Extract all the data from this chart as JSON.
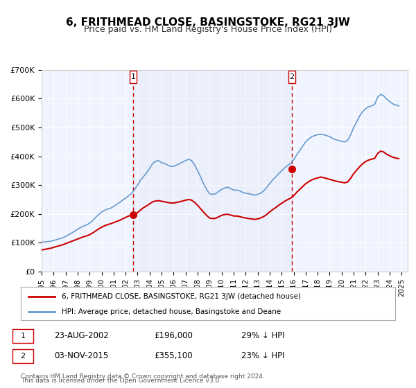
{
  "title": "6, FRITHMEAD CLOSE, BASINGSTOKE, RG21 3JW",
  "subtitle": "Price paid vs. HM Land Registry's House Price Index (HPI)",
  "background_color": "#ffffff",
  "plot_bg_color": "#f0f4ff",
  "grid_color": "#ffffff",
  "ylim": [
    0,
    700000
  ],
  "yticks": [
    0,
    100000,
    200000,
    300000,
    400000,
    500000,
    600000,
    700000
  ],
  "ytick_labels": [
    "£0",
    "£100K",
    "£200K",
    "£300K",
    "£400K",
    "£500K",
    "£600K",
    "£700K"
  ],
  "xmin": 1995.0,
  "xmax": 2025.5,
  "xticks": [
    1995,
    1996,
    1997,
    1998,
    1999,
    2000,
    2001,
    2002,
    2003,
    2004,
    2005,
    2006,
    2007,
    2008,
    2009,
    2010,
    2011,
    2012,
    2013,
    2014,
    2015,
    2016,
    2017,
    2018,
    2019,
    2020,
    2021,
    2022,
    2023,
    2024,
    2025
  ],
  "marker1_x": 2002.644,
  "marker1_y": 196000,
  "marker1_label": "1",
  "marker1_date": "23-AUG-2002",
  "marker1_price": "£196,000",
  "marker1_hpi": "29% ↓ HPI",
  "marker2_x": 2015.838,
  "marker2_y": 355100,
  "marker2_label": "2",
  "marker2_date": "03-NOV-2015",
  "marker2_price": "£355,100",
  "marker2_hpi": "23% ↓ HPI",
  "line1_color": "#cc0000",
  "line2_color": "#6699cc",
  "marker_color": "#cc0000",
  "legend1_label": "6, FRITHMEAD CLOSE, BASINGSTOKE, RG21 3JW (detached house)",
  "legend2_label": "HPI: Average price, detached house, Basingstoke and Deane",
  "footer1": "Contains HM Land Registry data © Crown copyright and database right 2024.",
  "footer2": "This data is licensed under the Open Government Licence v3.0.",
  "hpi_data_x": [
    1995.0,
    1995.25,
    1995.5,
    1995.75,
    1996.0,
    1996.25,
    1996.5,
    1996.75,
    1997.0,
    1997.25,
    1997.5,
    1997.75,
    1998.0,
    1998.25,
    1998.5,
    1998.75,
    1999.0,
    1999.25,
    1999.5,
    1999.75,
    2000.0,
    2000.25,
    2000.5,
    2000.75,
    2001.0,
    2001.25,
    2001.5,
    2001.75,
    2002.0,
    2002.25,
    2002.5,
    2002.75,
    2003.0,
    2003.25,
    2003.5,
    2003.75,
    2004.0,
    2004.25,
    2004.5,
    2004.75,
    2005.0,
    2005.25,
    2005.5,
    2005.75,
    2006.0,
    2006.25,
    2006.5,
    2006.75,
    2007.0,
    2007.25,
    2007.5,
    2007.75,
    2008.0,
    2008.25,
    2008.5,
    2008.75,
    2009.0,
    2009.25,
    2009.5,
    2009.75,
    2010.0,
    2010.25,
    2010.5,
    2010.75,
    2011.0,
    2011.25,
    2011.5,
    2011.75,
    2012.0,
    2012.25,
    2012.5,
    2012.75,
    2013.0,
    2013.25,
    2013.5,
    2013.75,
    2014.0,
    2014.25,
    2014.5,
    2014.75,
    2015.0,
    2015.25,
    2015.5,
    2015.75,
    2016.0,
    2016.25,
    2016.5,
    2016.75,
    2017.0,
    2017.25,
    2017.5,
    2017.75,
    2018.0,
    2018.25,
    2018.5,
    2018.75,
    2019.0,
    2019.25,
    2019.5,
    2019.75,
    2020.0,
    2020.25,
    2020.5,
    2020.75,
    2021.0,
    2021.25,
    2021.5,
    2021.75,
    2022.0,
    2022.25,
    2022.5,
    2022.75,
    2023.0,
    2023.25,
    2023.5,
    2023.75,
    2024.0,
    2024.25,
    2024.5,
    2024.75
  ],
  "hpi_data_y": [
    102000,
    103000,
    104000,
    105000,
    108000,
    111000,
    114000,
    117000,
    122000,
    128000,
    134000,
    140000,
    147000,
    153000,
    158000,
    162000,
    168000,
    177000,
    188000,
    198000,
    207000,
    213000,
    217000,
    220000,
    226000,
    233000,
    240000,
    248000,
    255000,
    263000,
    272000,
    285000,
    300000,
    318000,
    330000,
    343000,
    358000,
    375000,
    383000,
    385000,
    378000,
    375000,
    370000,
    365000,
    365000,
    370000,
    375000,
    380000,
    385000,
    390000,
    385000,
    370000,
    350000,
    328000,
    305000,
    285000,
    270000,
    268000,
    270000,
    278000,
    285000,
    290000,
    293000,
    288000,
    283000,
    283000,
    280000,
    275000,
    272000,
    270000,
    268000,
    265000,
    268000,
    272000,
    280000,
    292000,
    305000,
    318000,
    328000,
    340000,
    350000,
    360000,
    368000,
    375000,
    388000,
    405000,
    420000,
    435000,
    450000,
    460000,
    468000,
    472000,
    475000,
    477000,
    475000,
    472000,
    468000,
    462000,
    458000,
    455000,
    452000,
    450000,
    455000,
    475000,
    500000,
    520000,
    540000,
    555000,
    565000,
    572000,
    575000,
    580000,
    605000,
    615000,
    610000,
    598000,
    590000,
    582000,
    578000,
    575000
  ],
  "price_data_x": [
    1995.0,
    1995.25,
    1995.5,
    1995.75,
    1996.0,
    1996.25,
    1996.5,
    1996.75,
    1997.0,
    1997.25,
    1997.5,
    1997.75,
    1998.0,
    1998.25,
    1998.5,
    1998.75,
    1999.0,
    1999.25,
    1999.5,
    1999.75,
    2000.0,
    2000.25,
    2000.5,
    2000.75,
    2001.0,
    2001.25,
    2001.5,
    2001.75,
    2002.0,
    2002.25,
    2002.5,
    2002.75,
    2003.0,
    2003.25,
    2003.5,
    2003.75,
    2004.0,
    2004.25,
    2004.5,
    2004.75,
    2005.0,
    2005.25,
    2005.5,
    2005.75,
    2006.0,
    2006.25,
    2006.5,
    2006.75,
    2007.0,
    2007.25,
    2007.5,
    2007.75,
    2008.0,
    2008.25,
    2008.5,
    2008.75,
    2009.0,
    2009.25,
    2009.5,
    2009.75,
    2010.0,
    2010.25,
    2010.5,
    2010.75,
    2011.0,
    2011.25,
    2011.5,
    2011.75,
    2012.0,
    2012.25,
    2012.5,
    2012.75,
    2013.0,
    2013.25,
    2013.5,
    2013.75,
    2014.0,
    2014.25,
    2014.5,
    2014.75,
    2015.0,
    2015.25,
    2015.5,
    2015.75,
    2016.0,
    2016.25,
    2016.5,
    2016.75,
    2017.0,
    2017.25,
    2017.5,
    2017.75,
    2018.0,
    2018.25,
    2018.5,
    2018.75,
    2019.0,
    2019.25,
    2019.5,
    2019.75,
    2020.0,
    2020.25,
    2020.5,
    2020.75,
    2021.0,
    2021.25,
    2021.5,
    2021.75,
    2022.0,
    2022.25,
    2022.5,
    2022.75,
    2023.0,
    2023.25,
    2023.5,
    2023.75,
    2024.0,
    2024.25,
    2024.5,
    2024.75
  ],
  "price_data_y": [
    75000,
    77000,
    79000,
    81000,
    84000,
    87000,
    90000,
    93000,
    97000,
    101000,
    105000,
    109000,
    113000,
    117000,
    121000,
    124000,
    128000,
    134000,
    141000,
    148000,
    154000,
    159000,
    163000,
    166000,
    170000,
    174000,
    178000,
    183000,
    188000,
    193000,
    196000,
    200000,
    205000,
    214000,
    222000,
    228000,
    235000,
    242000,
    245000,
    246000,
    244000,
    242000,
    240000,
    238000,
    238000,
    240000,
    242000,
    245000,
    248000,
    250000,
    248000,
    240000,
    230000,
    218000,
    206000,
    195000,
    186000,
    184000,
    185000,
    190000,
    195000,
    198000,
    199000,
    196000,
    193000,
    193000,
    191000,
    188000,
    186000,
    184000,
    183000,
    181000,
    183000,
    186000,
    191000,
    198000,
    207000,
    215000,
    222000,
    230000,
    237000,
    244000,
    250000,
    255000,
    263000,
    275000,
    285000,
    295000,
    305000,
    312000,
    318000,
    322000,
    325000,
    328000,
    326000,
    323000,
    320000,
    317000,
    314000,
    312000,
    310000,
    308000,
    311000,
    324000,
    340000,
    352000,
    364000,
    374000,
    382000,
    387000,
    390000,
    393000,
    410000,
    418000,
    415000,
    407000,
    402000,
    397000,
    394000,
    392000
  ]
}
